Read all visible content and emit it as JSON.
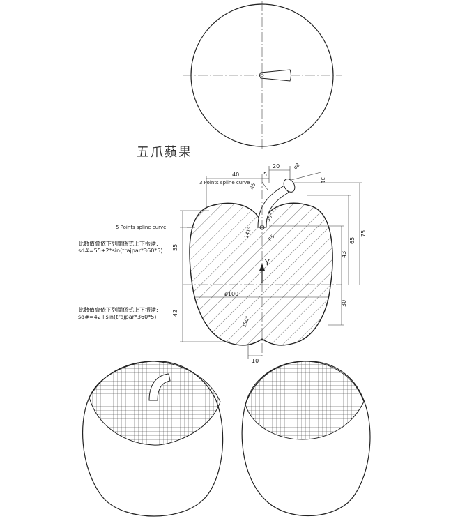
{
  "title": "五爪蘋果",
  "callouts": {
    "spline3": "3 Points spline curve",
    "spline5": "5 Points spline curve"
  },
  "notes": {
    "upper_caption": "此數值會依下列關係式上下振盪:",
    "upper_formula": "sd#=55+2*sin(trajpar*360*5)",
    "lower_caption": "此數值會依下列關係式上下振盪:",
    "lower_formula": "sd#=42+sin(trajpar*360*5)"
  },
  "dimensions": {
    "d40": "40",
    "d5": "5",
    "d20": "20",
    "d8": "ø8",
    "d31": "31",
    "d55": "55",
    "d42": "42",
    "d75": "75",
    "d65": "65",
    "d43": "43",
    "d30": "30",
    "d100": "ø100",
    "d10": "10",
    "r5a": "R5",
    "r5b": "R5",
    "a150": "150°",
    "a141": "141°",
    "a30": "30°"
  },
  "axis_label": "Y"
}
